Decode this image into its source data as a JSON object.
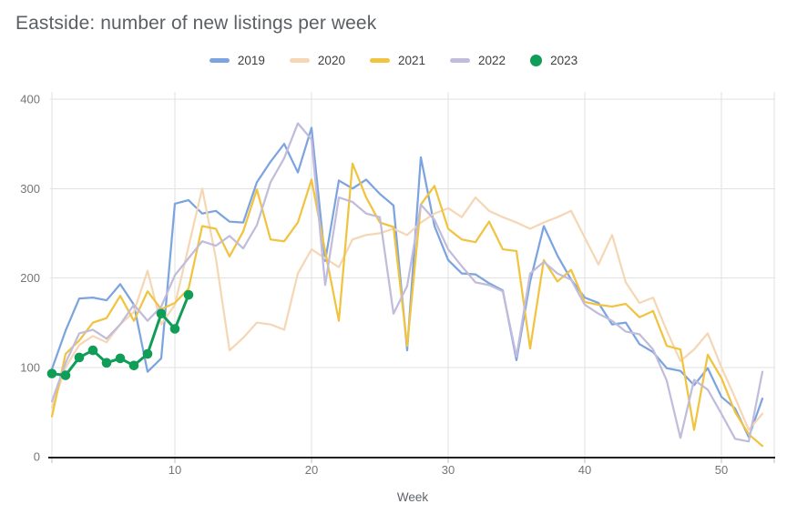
{
  "title": "Eastside: number of new listings per week",
  "chart_data": {
    "type": "line",
    "title": "Eastside: number of new listings per week",
    "xlabel": "Week",
    "ylabel": "",
    "xlim": [
      1,
      53
    ],
    "ylim": [
      0,
      400
    ],
    "x_ticks": [
      10,
      20,
      30,
      40,
      50
    ],
    "y_ticks": [
      0,
      100,
      200,
      300,
      400
    ],
    "grid": true,
    "legend_position": "top",
    "colors": {
      "background": "#ffffff",
      "grid": "#e2e2e2",
      "axis": "#212121",
      "tick_text": "#757575",
      "minor_tick": "#bdbdbd"
    },
    "x_unit": "week number (index + 1)",
    "series": [
      {
        "name": "2019",
        "color": "#7ca4df",
        "marker": "none",
        "values": [
          98,
          141,
          177,
          178,
          175,
          193,
          170,
          95,
          110,
          283,
          287,
          272,
          275,
          263,
          262,
          307,
          330,
          350,
          318,
          368,
          219,
          309,
          300,
          310,
          294,
          281,
          119,
          335,
          258,
          220,
          205,
          204,
          194,
          186,
          108,
          196,
          258,
          225,
          198,
          178,
          172,
          148,
          150,
          126,
          117,
          99,
          96,
          80,
          99,
          67,
          54,
          22,
          65
        ]
      },
      {
        "name": "2020",
        "color": "#f5d7b5",
        "marker": "none",
        "values": [
          55,
          100,
          125,
          135,
          128,
          148,
          162,
          208,
          148,
          170,
          235,
          300,
          222,
          119,
          133,
          150,
          148,
          142,
          205,
          232,
          222,
          212,
          243,
          248,
          250,
          255,
          248,
          262,
          272,
          278,
          268,
          290,
          275,
          268,
          262,
          255,
          262,
          268,
          275,
          245,
          215,
          248,
          195,
          172,
          178,
          141,
          107,
          120,
          138,
          100,
          66,
          30,
          48
        ]
      },
      {
        "name": "2021",
        "color": "#f0c440",
        "marker": "none",
        "values": [
          45,
          115,
          130,
          150,
          155,
          180,
          152,
          185,
          165,
          172,
          188,
          258,
          255,
          224,
          252,
          299,
          243,
          241,
          262,
          310,
          230,
          152,
          328,
          290,
          262,
          257,
          124,
          282,
          303,
          255,
          243,
          240,
          263,
          232,
          230,
          121,
          220,
          196,
          209,
          173,
          170,
          168,
          171,
          156,
          163,
          124,
          120,
          30,
          114,
          88,
          50,
          25,
          12
        ]
      },
      {
        "name": "2022",
        "color": "#c2bcdc",
        "marker": "none",
        "values": [
          62,
          105,
          138,
          142,
          132,
          148,
          170,
          152,
          168,
          203,
          222,
          241,
          236,
          247,
          233,
          259,
          307,
          334,
          373,
          355,
          192,
          290,
          285,
          272,
          268,
          160,
          191,
          282,
          265,
          232,
          213,
          195,
          192,
          185,
          112,
          205,
          218,
          205,
          198,
          170,
          160,
          152,
          140,
          137,
          120,
          85,
          21,
          86,
          75,
          48,
          20,
          17,
          95
        ]
      },
      {
        "name": "2023",
        "color": "#0f9d58",
        "marker": "circle",
        "values": [
          93,
          91,
          111,
          119,
          105,
          110,
          102,
          115,
          160,
          143,
          181
        ]
      }
    ]
  }
}
